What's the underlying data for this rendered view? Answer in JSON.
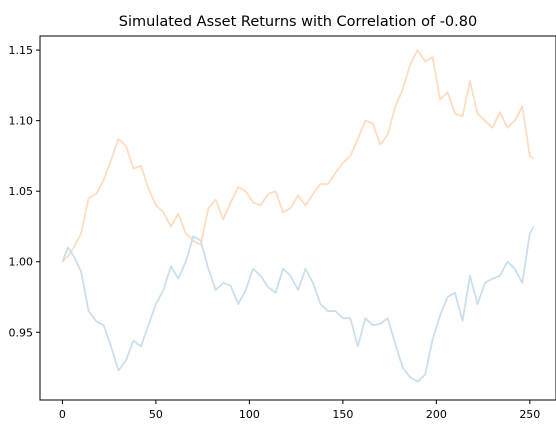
{
  "chart_data": {
    "type": "line",
    "title": "Simulated Asset Returns with Correlation of -0.80",
    "xlabel": "",
    "ylabel": "",
    "xlim": [
      -12,
      264
    ],
    "ylim": [
      0.902,
      1.16
    ],
    "x_ticks": [
      0,
      50,
      100,
      150,
      200,
      250
    ],
    "x_tick_labels": [
      "0",
      "50",
      "100",
      "150",
      "200",
      "250"
    ],
    "y_ticks": [
      0.95,
      1.0,
      1.05,
      1.1,
      1.15
    ],
    "y_tick_labels": [
      "0.95",
      "1.00",
      "1.05",
      "1.10",
      "1.15"
    ],
    "grid": false,
    "legend": "none",
    "series": [
      {
        "color": "#ffdcbf",
        "x": [
          0,
          3,
          6,
          10,
          14,
          18,
          22,
          26,
          30,
          34,
          38,
          42,
          46,
          50,
          54,
          58,
          62,
          66,
          70,
          74,
          78,
          82,
          86,
          90,
          94,
          98,
          102,
          106,
          110,
          114,
          118,
          122,
          126,
          130,
          134,
          138,
          142,
          146,
          150,
          154,
          158,
          162,
          166,
          170,
          174,
          178,
          182,
          186,
          190,
          194,
          198,
          202,
          206,
          210,
          214,
          218,
          222,
          226,
          230,
          234,
          238,
          242,
          246,
          250,
          252
        ],
        "y": [
          1.0,
          1.004,
          1.01,
          1.02,
          1.045,
          1.048,
          1.058,
          1.072,
          1.087,
          1.082,
          1.066,
          1.068,
          1.052,
          1.04,
          1.035,
          1.025,
          1.034,
          1.02,
          1.015,
          1.012,
          1.038,
          1.044,
          1.03,
          1.042,
          1.053,
          1.05,
          1.042,
          1.04,
          1.048,
          1.05,
          1.035,
          1.038,
          1.047,
          1.04,
          1.048,
          1.055,
          1.055,
          1.063,
          1.07,
          1.075,
          1.087,
          1.1,
          1.098,
          1.083,
          1.09,
          1.11,
          1.122,
          1.14,
          1.15,
          1.142,
          1.145,
          1.115,
          1.12,
          1.105,
          1.103,
          1.128,
          1.105,
          1.1,
          1.095,
          1.106,
          1.095,
          1.1,
          1.11,
          1.075,
          1.073
        ]
      },
      {
        "color": "#c9dfee",
        "x": [
          0,
          3,
          6,
          10,
          14,
          18,
          22,
          26,
          30,
          34,
          38,
          42,
          46,
          50,
          54,
          58,
          62,
          66,
          70,
          74,
          78,
          82,
          86,
          90,
          94,
          98,
          102,
          106,
          110,
          114,
          118,
          122,
          126,
          130,
          134,
          138,
          142,
          146,
          150,
          154,
          158,
          162,
          166,
          170,
          174,
          178,
          182,
          186,
          190,
          194,
          198,
          202,
          206,
          210,
          214,
          218,
          222,
          226,
          230,
          234,
          238,
          242,
          246,
          250,
          252
        ],
        "y": [
          1.0,
          1.01,
          1.004,
          0.993,
          0.965,
          0.958,
          0.955,
          0.94,
          0.923,
          0.93,
          0.944,
          0.94,
          0.955,
          0.97,
          0.98,
          0.997,
          0.988,
          1.0,
          1.018,
          1.015,
          0.995,
          0.98,
          0.985,
          0.983,
          0.97,
          0.98,
          0.995,
          0.99,
          0.982,
          0.978,
          0.995,
          0.99,
          0.98,
          0.995,
          0.985,
          0.97,
          0.965,
          0.965,
          0.96,
          0.96,
          0.94,
          0.96,
          0.955,
          0.956,
          0.96,
          0.942,
          0.925,
          0.918,
          0.915,
          0.92,
          0.945,
          0.962,
          0.975,
          0.978,
          0.958,
          0.99,
          0.97,
          0.985,
          0.988,
          0.99,
          1.0,
          0.995,
          0.985,
          1.02,
          1.025
        ]
      }
    ]
  }
}
